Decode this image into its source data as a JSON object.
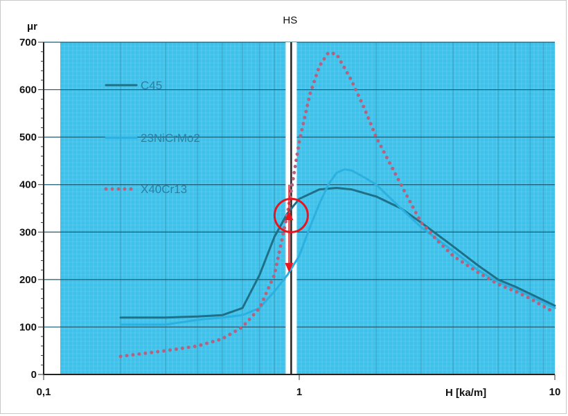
{
  "chart_data": {
    "type": "line",
    "xscale": "log",
    "xlim": [
      0.1,
      10
    ],
    "ylim": [
      0,
      700
    ],
    "xticks": [
      {
        "value": 0.1,
        "label": "0,1"
      },
      {
        "value": 1,
        "label": "1"
      },
      {
        "value": 10,
        "label": "10"
      }
    ],
    "yticks": [
      0,
      100,
      200,
      300,
      400,
      500,
      600,
      700
    ],
    "ylabel": "μr",
    "xlabel": "H [ka/m]",
    "marker_label": "HS",
    "marker_x": 0.93,
    "grid": true,
    "legend_position": "left",
    "colors": {
      "plot_background": "#3ec1ea",
      "C45": "#1f6f86",
      "23NiCrMo2": "#2bb0e0",
      "X40Cr13": "#b3637f",
      "highlight": "#e8141e"
    },
    "series": [
      {
        "name": "C45",
        "style": "solid",
        "points": [
          [
            0.2,
            120
          ],
          [
            0.3,
            120
          ],
          [
            0.4,
            122
          ],
          [
            0.5,
            125
          ],
          [
            0.6,
            140
          ],
          [
            0.7,
            210
          ],
          [
            0.8,
            290
          ],
          [
            0.9,
            340
          ],
          [
            1.0,
            370
          ],
          [
            1.2,
            390
          ],
          [
            1.4,
            393
          ],
          [
            1.6,
            390
          ],
          [
            2.0,
            375
          ],
          [
            2.5,
            350
          ],
          [
            3.0,
            320
          ],
          [
            4.0,
            270
          ],
          [
            5.0,
            230
          ],
          [
            6.0,
            200
          ],
          [
            7.0,
            185
          ],
          [
            8.0,
            170
          ],
          [
            10.0,
            145
          ]
        ]
      },
      {
        "name": "23NiCrMo2",
        "style": "solid",
        "points": [
          [
            0.2,
            105
          ],
          [
            0.3,
            105
          ],
          [
            0.4,
            115
          ],
          [
            0.5,
            120
          ],
          [
            0.6,
            125
          ],
          [
            0.7,
            140
          ],
          [
            0.8,
            175
          ],
          [
            0.9,
            210
          ],
          [
            1.0,
            250
          ],
          [
            1.1,
            310
          ],
          [
            1.2,
            360
          ],
          [
            1.3,
            400
          ],
          [
            1.4,
            425
          ],
          [
            1.5,
            432
          ],
          [
            1.6,
            430
          ],
          [
            1.8,
            415
          ],
          [
            2.0,
            400
          ],
          [
            2.5,
            350
          ],
          [
            3.0,
            310
          ],
          [
            4.0,
            260
          ],
          [
            5.0,
            220
          ],
          [
            6.0,
            195
          ],
          [
            7.0,
            180
          ],
          [
            8.0,
            165
          ],
          [
            10.0,
            140
          ]
        ]
      },
      {
        "name": "X40Cr13",
        "style": "dotted",
        "points": [
          [
            0.2,
            38
          ],
          [
            0.3,
            50
          ],
          [
            0.4,
            60
          ],
          [
            0.5,
            75
          ],
          [
            0.6,
            100
          ],
          [
            0.7,
            140
          ],
          [
            0.8,
            210
          ],
          [
            0.9,
            340
          ],
          [
            1.0,
            490
          ],
          [
            1.1,
            590
          ],
          [
            1.2,
            650
          ],
          [
            1.3,
            678
          ],
          [
            1.4,
            675
          ],
          [
            1.6,
            620
          ],
          [
            1.8,
            560
          ],
          [
            2.0,
            500
          ],
          [
            2.5,
            400
          ],
          [
            3.0,
            320
          ],
          [
            3.5,
            280
          ],
          [
            4.0,
            250
          ],
          [
            5.0,
            215
          ],
          [
            6.0,
            190
          ],
          [
            7.0,
            175
          ],
          [
            8.0,
            160
          ],
          [
            10.0,
            130
          ]
        ]
      }
    ]
  }
}
